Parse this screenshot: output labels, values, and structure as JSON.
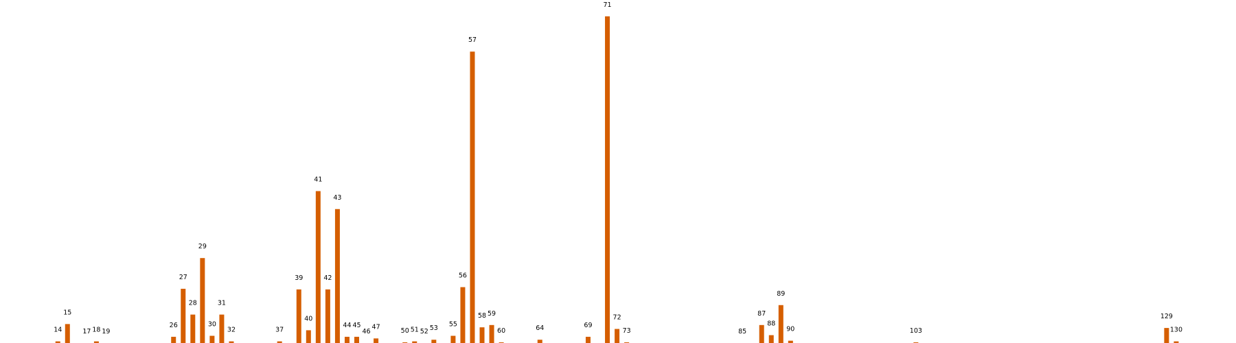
{
  "chart_data": {
    "type": "bar",
    "x": [
      14,
      15,
      17,
      18,
      19,
      26,
      27,
      28,
      29,
      30,
      31,
      32,
      37,
      39,
      40,
      41,
      42,
      43,
      44,
      45,
      46,
      47,
      50,
      51,
      52,
      53,
      55,
      56,
      57,
      58,
      59,
      60,
      64,
      69,
      71,
      72,
      73,
      85,
      87,
      88,
      89,
      90,
      103,
      129,
      130
    ],
    "values": [
      0.5,
      5.8,
      0,
      0.5,
      0,
      1.9,
      16.6,
      8.7,
      26,
      2.2,
      8.7,
      0.5,
      0.5,
      16.4,
      3.9,
      46.5,
      16.4,
      41,
      1.9,
      1.9,
      0,
      1.4,
      0.2,
      0.5,
      0,
      1,
      2.2,
      17.1,
      89.2,
      4.8,
      5.5,
      0.2,
      1,
      1.9,
      100,
      4.3,
      0.2,
      0,
      5.5,
      2.4,
      11.6,
      0.7,
      0.2,
      4.6,
      0.5
    ],
    "color": "#d55e00",
    "xlim": [
      8,
      136.2
    ],
    "ylim": [
      0,
      105
    ]
  }
}
